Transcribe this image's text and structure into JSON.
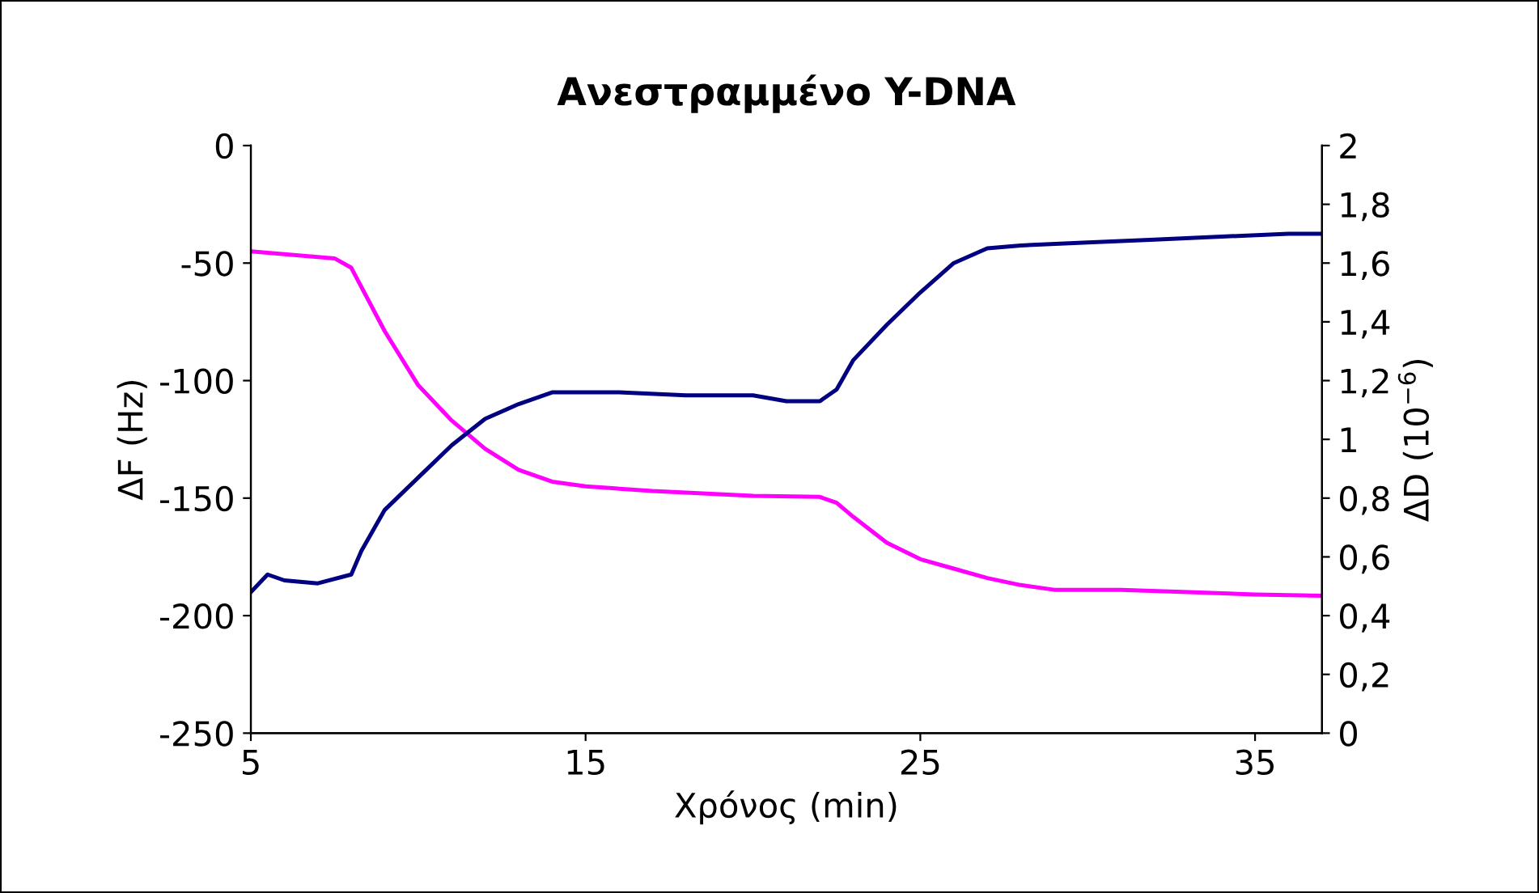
{
  "chart_data": {
    "type": "line",
    "title": "Ανεστραμμένο Y-DNA",
    "xlabel": "Χρόνος (min)",
    "ylabel": "ΔF (Hz)",
    "y2label": "ΔD (10$^{−6}$)",
    "xlim": [
      5,
      37
    ],
    "xticks": [
      5,
      15,
      25,
      35
    ],
    "ylim": [
      -250,
      0
    ],
    "yticks": [
      -250,
      -200,
      -150,
      -100,
      -50,
      0
    ],
    "y2lim": [
      0,
      2
    ],
    "y2ticks": [
      {
        "value": 0,
        "label": "0"
      },
      {
        "value": 0.2,
        "label": "0,2"
      },
      {
        "value": 0.4,
        "label": "0,4"
      },
      {
        "value": 0.6,
        "label": "0,6"
      },
      {
        "value": 0.8,
        "label": "0,8"
      },
      {
        "value": 1,
        "label": "1"
      },
      {
        "value": 1.2,
        "label": "1,2"
      },
      {
        "value": 1.4,
        "label": "1,4"
      },
      {
        "value": 1.6,
        "label": "1,6"
      },
      {
        "value": 1.8,
        "label": "1,8"
      },
      {
        "value": 2,
        "label": "2"
      }
    ],
    "grid": false,
    "legend": false,
    "marker": "none",
    "line_style": "solid",
    "series": [
      {
        "color": "#ff00ff",
        "x": [
          5,
          7.5,
          8,
          9,
          10,
          11,
          12,
          13,
          14,
          15,
          17,
          20,
          22,
          22.5,
          23,
          24,
          25,
          26,
          27,
          28,
          29,
          31,
          33,
          35,
          37
        ],
        "values": [
          -45,
          -48,
          -52,
          -79,
          -102,
          -117,
          -129,
          -138,
          -143,
          -145,
          -147,
          -149,
          -149.5,
          -152,
          -158,
          -169,
          -176,
          -180,
          -184,
          -187,
          -189,
          -189,
          -190,
          -191,
          -191.5
        ]
      },
      {
        "color": "#000080",
        "axis": "y2",
        "x": [
          5,
          5.5,
          6,
          7,
          8,
          8.3,
          9,
          10,
          11,
          12,
          13,
          14,
          16,
          18,
          20,
          21,
          22,
          22.5,
          23,
          24,
          25,
          26,
          27,
          28,
          30,
          32,
          34,
          36,
          37
        ],
        "values": [
          0.48,
          0.54,
          0.52,
          0.51,
          0.54,
          0.62,
          0.76,
          0.87,
          0.98,
          1.07,
          1.12,
          1.16,
          1.16,
          1.15,
          1.15,
          1.13,
          1.13,
          1.17,
          1.27,
          1.39,
          1.5,
          1.6,
          1.65,
          1.66,
          1.67,
          1.68,
          1.69,
          1.7,
          1.7
        ]
      }
    ]
  }
}
